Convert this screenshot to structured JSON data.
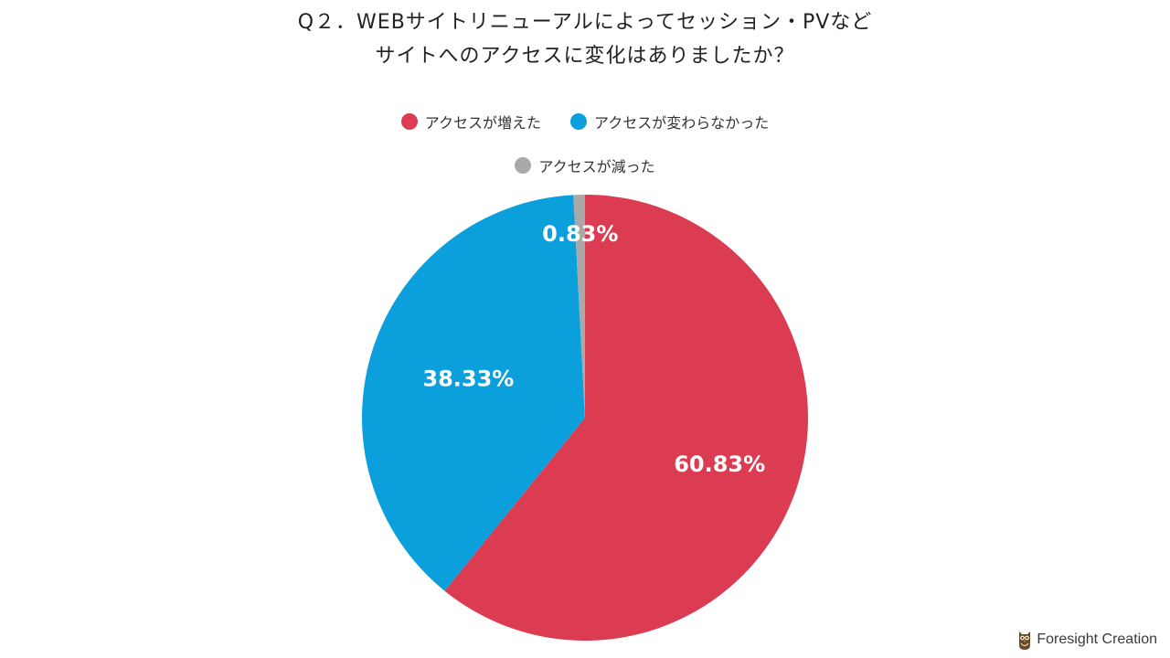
{
  "title": {
    "line1": "Q２．WEBサイトリニューアルによってセッション・PVなど",
    "line2": "サイトへのアクセスに変化はありましたか？"
  },
  "brand": {
    "name": "Foresight Creation"
  },
  "chart_data": {
    "type": "pie",
    "title": "Q２．WEBサイトリニューアルによってセッション・PVなど サイトへのアクセスに変化はありましたか？",
    "legend_position": "top",
    "start_angle": "12 o'clock, clockwise",
    "series": [
      {
        "name": "アクセスが増えた",
        "value": 60.83,
        "label": "60.83%",
        "color": "#dc3c52"
      },
      {
        "name": "アクセスが変わらなかった",
        "value": 38.33,
        "label": "38.33%",
        "color": "#0b9fdc"
      },
      {
        "name": "アクセスが減った",
        "value": 0.83,
        "label": "0.83%",
        "color": "#a9a9a9"
      }
    ]
  }
}
